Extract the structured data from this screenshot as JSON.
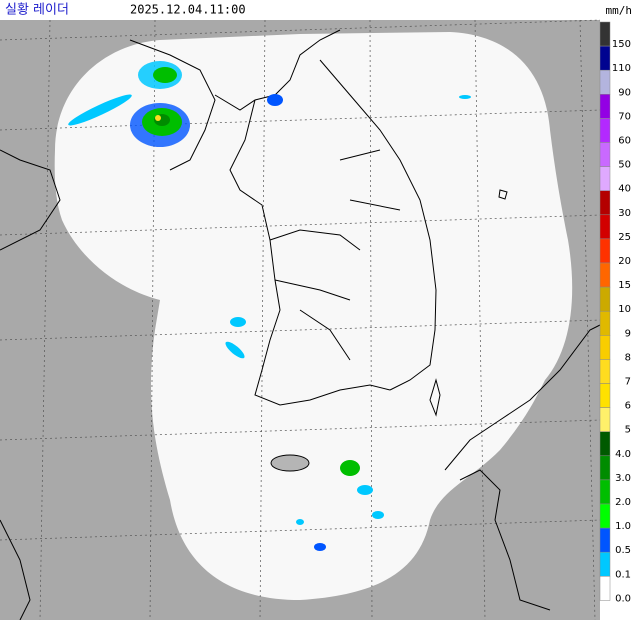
{
  "header": {
    "title": "실황 레이더",
    "time": "2025.12.04.11:00"
  },
  "legend": {
    "unit": "mm/h",
    "levels": [
      {
        "label": "150",
        "color": "#333333"
      },
      {
        "label": "110",
        "color": "#000390"
      },
      {
        "label": "90",
        "color": "#b3b4de"
      },
      {
        "label": "70",
        "color": "#9300e4"
      },
      {
        "label": "60",
        "color": "#b329ff"
      },
      {
        "label": "50",
        "color": "#c969ff"
      },
      {
        "label": "40",
        "color": "#dfa9ff"
      },
      {
        "label": "30",
        "color": "#b40000"
      },
      {
        "label": "25",
        "color": "#d20000"
      },
      {
        "label": "20",
        "color": "#ff3200"
      },
      {
        "label": "15",
        "color": "#ff6600"
      },
      {
        "label": "10",
        "color": "#ccaa00"
      },
      {
        "label": "9",
        "color": "#e0b900"
      },
      {
        "label": "8",
        "color": "#f9cd00"
      },
      {
        "label": "7",
        "color": "#ffdc1f"
      },
      {
        "label": "6",
        "color": "#ffe100"
      },
      {
        "label": "5",
        "color": "#fff06a"
      },
      {
        "label": "4.0",
        "color": "#005a00"
      },
      {
        "label": "3.0",
        "color": "#008c00"
      },
      {
        "label": "2.0",
        "color": "#00be00"
      },
      {
        "label": "1.0",
        "color": "#00ff00"
      },
      {
        "label": "0.5",
        "color": "#0055ff"
      },
      {
        "label": "0.1",
        "color": "#00c8ff"
      },
      {
        "label": "0.0",
        "color": "#ffffff"
      }
    ]
  }
}
